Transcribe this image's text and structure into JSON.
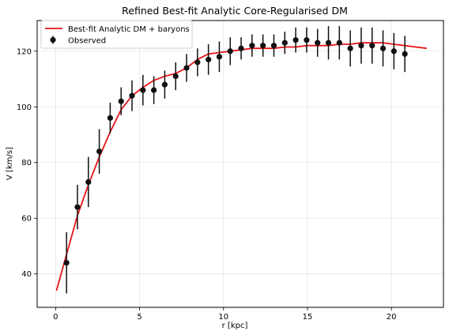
{
  "chart_data": {
    "type": "line",
    "title": "Refined Best-fit Analytic Core-Regularised DM",
    "xlabel": "r [kpc]",
    "ylabel": "V [km/s]",
    "xlim": [
      -1.1,
      23.1
    ],
    "ylim": [
      28,
      131
    ],
    "xticks": [
      0,
      5,
      10,
      15,
      20
    ],
    "yticks": [
      40,
      60,
      80,
      100,
      120
    ],
    "grid": true,
    "legend_position": "top-left",
    "series": [
      {
        "name": "Best-fit Analytic DM + baryons",
        "kind": "line",
        "color": "#e8141a",
        "x": [
          0.05,
          0.65,
          1.3,
          1.95,
          2.6,
          3.25,
          3.9,
          4.55,
          5.2,
          5.85,
          6.5,
          7.15,
          7.8,
          8.45,
          9.1,
          9.75,
          10.4,
          11.05,
          11.7,
          12.35,
          13.0,
          13.65,
          14.3,
          14.95,
          15.6,
          16.25,
          16.9,
          17.55,
          18.2,
          18.85,
          19.5,
          20.15,
          20.8,
          21.45,
          22.1
        ],
        "y": [
          34,
          47,
          61,
          72,
          82,
          91,
          99,
          104,
          107,
          109.5,
          111,
          112,
          114,
          117,
          119,
          119.5,
          120,
          120.5,
          121,
          121,
          121,
          121.5,
          121.5,
          122,
          122,
          122,
          122.5,
          122.5,
          123,
          123,
          123,
          122.5,
          122,
          121.5,
          121
        ]
      },
      {
        "name": "Observed",
        "kind": "errorbar",
        "color": "#111111",
        "x": [
          0.65,
          1.3,
          1.95,
          2.6,
          3.25,
          3.9,
          4.55,
          5.2,
          5.85,
          6.5,
          7.15,
          7.8,
          8.45,
          9.1,
          9.75,
          10.4,
          11.05,
          11.7,
          12.35,
          13.0,
          13.65,
          14.3,
          14.95,
          15.6,
          16.25,
          16.9,
          17.55,
          18.2,
          18.85,
          19.5,
          20.15,
          20.8
        ],
        "y": [
          44,
          64,
          73,
          84,
          96,
          102,
          104,
          106,
          106,
          108,
          111,
          114,
          116,
          117,
          118,
          120,
          121,
          122,
          122,
          122,
          123,
          124,
          124,
          123,
          123,
          123,
          121,
          122,
          122,
          121,
          120,
          119
        ],
        "yerr": [
          11,
          8,
          9,
          8,
          5.5,
          5,
          5.5,
          5.5,
          5,
          5,
          5,
          5,
          5,
          5.5,
          5.5,
          5,
          4,
          4,
          4,
          4,
          4,
          4.5,
          4.5,
          5,
          6,
          6,
          6.5,
          6.5,
          6.5,
          6.5,
          6.5,
          6.5
        ]
      }
    ]
  }
}
